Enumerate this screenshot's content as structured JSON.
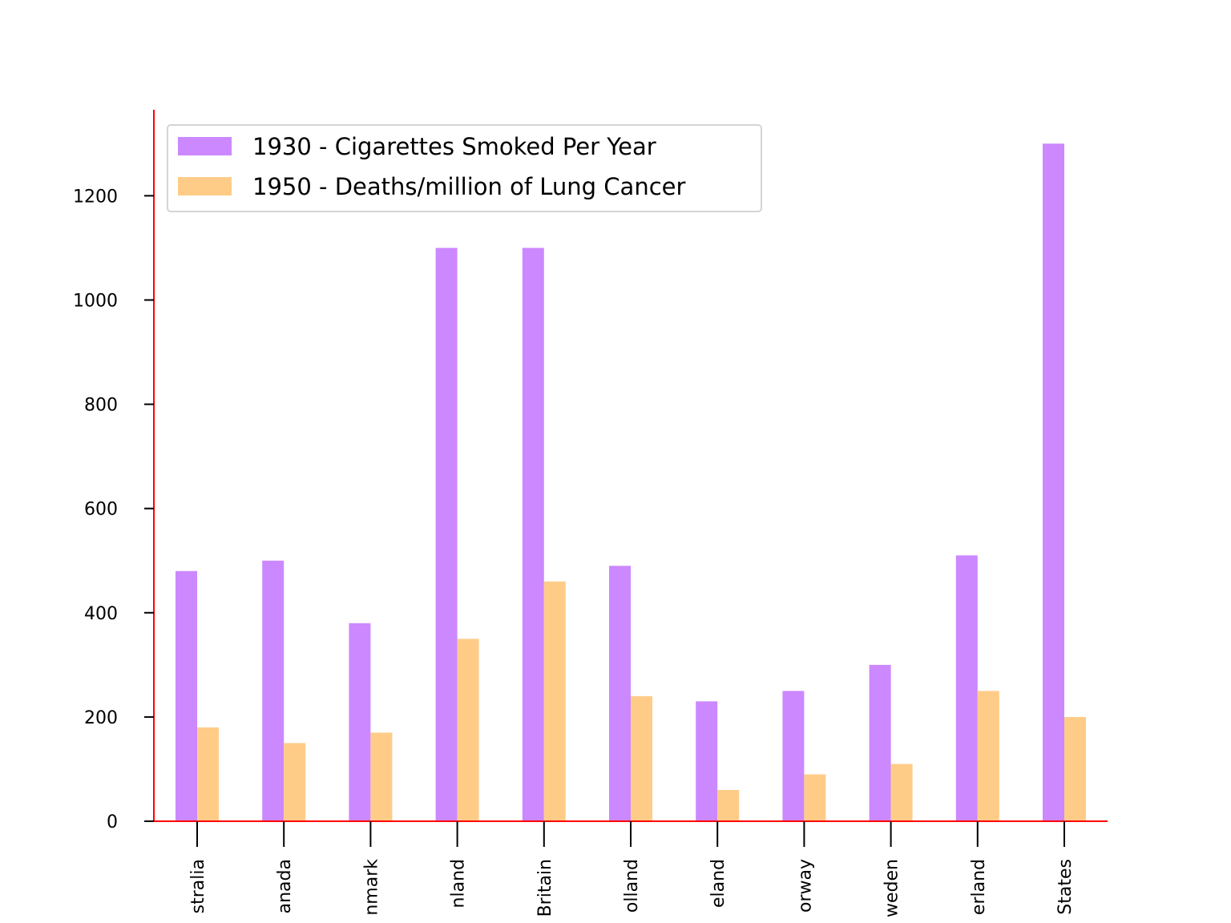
{
  "chart_data": {
    "type": "bar",
    "title": "",
    "xlabel": "",
    "ylabel": "",
    "categories": [
      "Australia",
      "Canada",
      "Denmark",
      "Finland",
      "Great Britain",
      "Holland",
      "Iceland",
      "Norway",
      "Sweden",
      "Switzerland",
      "United States"
    ],
    "visible_tick_labels": [
      "stralia",
      "anada",
      "nmark",
      "nland",
      "Britain",
      "olland",
      "eland",
      "orway",
      "weden",
      "erland",
      "States"
    ],
    "series": [
      {
        "name": "1930 - Cigarettes Smoked Per Year",
        "color": "#cc88ff",
        "values": [
          480,
          500,
          380,
          1100,
          1100,
          490,
          230,
          250,
          300,
          510,
          1300
        ]
      },
      {
        "name": "1950 - Deaths/million of Lung Cancer",
        "color": "#ffcc88",
        "values": [
          180,
          150,
          170,
          350,
          460,
          240,
          60,
          90,
          110,
          250,
          200
        ]
      }
    ],
    "ylim": [
      0,
      1365
    ],
    "yticks": [
      0,
      200,
      400,
      600,
      800,
      1000,
      1200
    ],
    "ytick_labels": [
      "0",
      "200",
      "400",
      "600",
      "800",
      "1000",
      "1200"
    ],
    "axis_color": "#ff0000",
    "grid": false,
    "legend_position": "top-left"
  }
}
